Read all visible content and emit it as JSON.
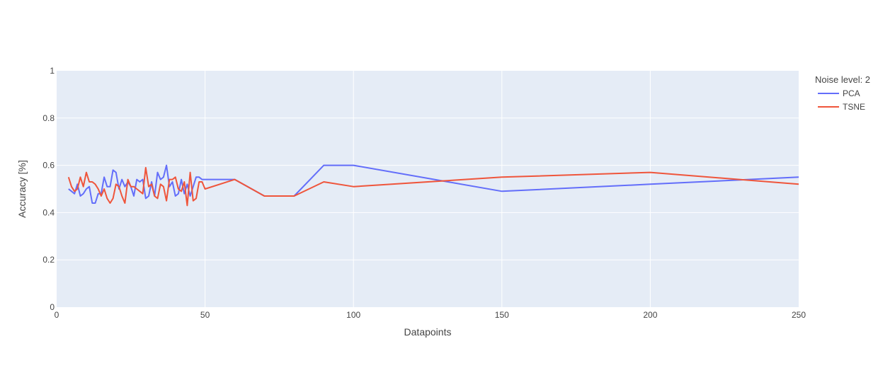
{
  "chart_data": {
    "type": "line",
    "title": "",
    "xlabel": "Datapoints",
    "ylabel": "Accuracy [%]",
    "xlim": [
      0,
      250
    ],
    "ylim": [
      0,
      1
    ],
    "x_ticks": [
      "0",
      "50",
      "100",
      "150",
      "200",
      "250"
    ],
    "y_ticks": [
      "0",
      "0.2",
      "0.4",
      "0.6",
      "0.8",
      "1"
    ],
    "grid": true,
    "legend": {
      "title": "Noise level: 2",
      "placement": "top-right"
    },
    "colors": {
      "plot_background": "#e5ecf6",
      "grid": "#ffffff"
    },
    "series": [
      {
        "name": "PCA",
        "color": "#636efa",
        "x": [
          4,
          5,
          6,
          7,
          8,
          9,
          10,
          11,
          12,
          13,
          14,
          15,
          16,
          17,
          18,
          19,
          20,
          21,
          22,
          23,
          24,
          25,
          26,
          27,
          28,
          29,
          30,
          31,
          32,
          33,
          34,
          35,
          36,
          37,
          38,
          39,
          40,
          41,
          42,
          43,
          44,
          45,
          46,
          47,
          48,
          49,
          50,
          60,
          70,
          80,
          90,
          100,
          150,
          200,
          250
        ],
        "y": [
          0.5,
          0.49,
          0.48,
          0.52,
          0.47,
          0.48,
          0.5,
          0.51,
          0.44,
          0.44,
          0.48,
          0.48,
          0.55,
          0.51,
          0.51,
          0.58,
          0.57,
          0.5,
          0.54,
          0.51,
          0.53,
          0.51,
          0.47,
          0.54,
          0.53,
          0.54,
          0.46,
          0.47,
          0.53,
          0.47,
          0.57,
          0.54,
          0.55,
          0.6,
          0.51,
          0.53,
          0.47,
          0.48,
          0.54,
          0.48,
          0.52,
          0.47,
          0.51,
          0.55,
          0.55,
          0.54,
          0.54,
          0.54,
          0.47,
          0.47,
          0.6,
          0.6,
          0.49,
          0.52,
          0.55
        ]
      },
      {
        "name": "TSNE",
        "color": "#ef553b",
        "x": [
          4,
          5,
          6,
          7,
          8,
          9,
          10,
          11,
          12,
          13,
          14,
          15,
          16,
          17,
          18,
          19,
          20,
          21,
          22,
          23,
          24,
          25,
          26,
          27,
          28,
          29,
          30,
          31,
          32,
          33,
          34,
          35,
          36,
          37,
          38,
          39,
          40,
          41,
          42,
          43,
          44,
          45,
          46,
          47,
          48,
          49,
          50,
          60,
          70,
          80,
          90,
          100,
          150,
          200,
          250
        ],
        "y": [
          0.55,
          0.51,
          0.49,
          0.5,
          0.55,
          0.51,
          0.57,
          0.53,
          0.53,
          0.52,
          0.5,
          0.47,
          0.5,
          0.46,
          0.44,
          0.46,
          0.52,
          0.51,
          0.47,
          0.44,
          0.54,
          0.51,
          0.51,
          0.5,
          0.49,
          0.48,
          0.59,
          0.51,
          0.52,
          0.47,
          0.46,
          0.52,
          0.51,
          0.45,
          0.54,
          0.54,
          0.55,
          0.5,
          0.49,
          0.53,
          0.43,
          0.57,
          0.45,
          0.46,
          0.53,
          0.53,
          0.5,
          0.54,
          0.47,
          0.47,
          0.53,
          0.51,
          0.55,
          0.57,
          0.52
        ]
      }
    ]
  }
}
